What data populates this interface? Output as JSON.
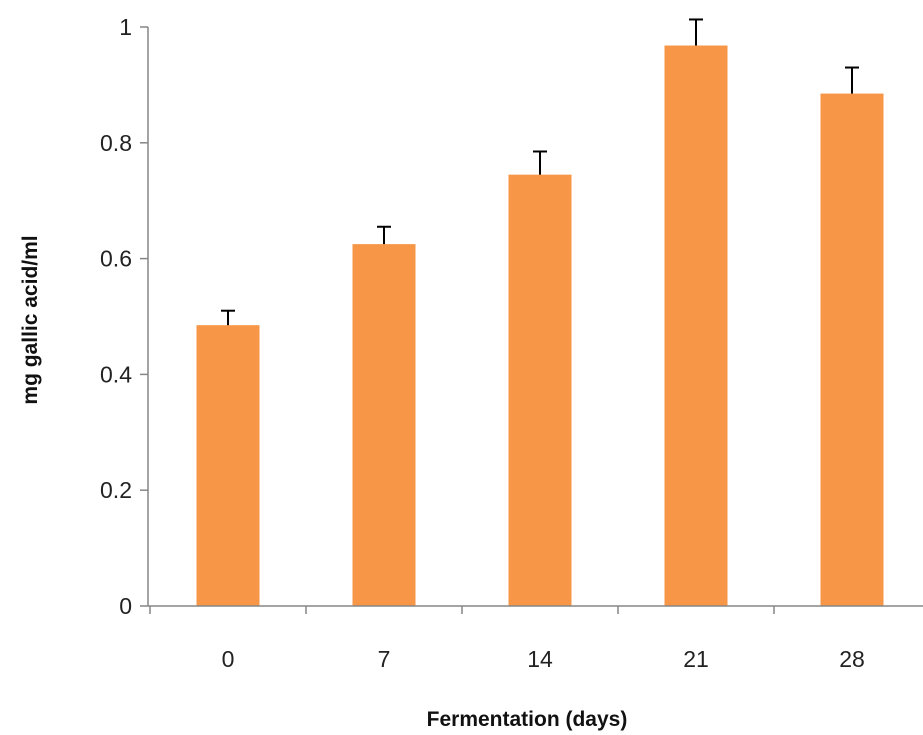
{
  "chart_data": {
    "type": "bar",
    "title": "",
    "xlabel": "Fermentation (days)",
    "ylabel": "mg gallic acid/ml",
    "categories": [
      "0",
      "7",
      "14",
      "21",
      "28"
    ],
    "values": [
      0.485,
      0.625,
      0.745,
      0.968,
      0.885
    ],
    "errors": [
      0.025,
      0.03,
      0.04,
      0.045,
      0.045
    ],
    "ylim": [
      0,
      1
    ],
    "yticks": [
      0,
      0.2,
      0.4,
      0.6,
      0.8,
      1
    ],
    "ytick_labels": [
      "0",
      "0.2",
      "0.4",
      "0.6",
      "0.8",
      "1"
    ],
    "grid": false,
    "legend": "none",
    "colors": {
      "bar": "#F79646",
      "error_bar": "#000000",
      "axis": "#868686"
    }
  }
}
